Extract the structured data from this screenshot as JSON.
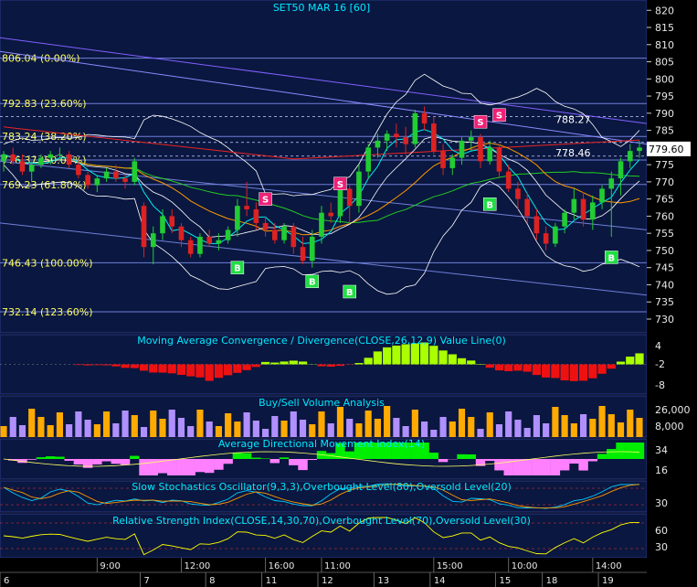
{
  "colors": {
    "background": "#0a1740",
    "panel_border": "#2a3a88",
    "price_axis_bg": "#000000",
    "axis_text": "#e8e8e8",
    "title_text": "#00e8ff",
    "fib_text": "#ffff60",
    "bull_candle": "#22cc33",
    "bear_candle": "#dd2222",
    "buy_marker": "#22dd44",
    "sell_marker": "#ee2277",
    "macd_pos": "#aaff00",
    "macd_neg": "#ee1111",
    "vol_up": "#ffaa00",
    "vol_down": "#b090ff",
    "adx_pos": "#00ee00",
    "adx_neg": "#ff80ff"
  },
  "price_panel": {
    "title": "SET50 MAR 16   [60]",
    "last_price_label": "779.60",
    "y_ticks": [
      "820",
      "815",
      "810",
      "805",
      "800",
      "795",
      "790",
      "785",
      "780",
      "775",
      "770",
      "765",
      "760",
      "755",
      "750",
      "745",
      "740",
      "735",
      "730"
    ],
    "fib_levels": [
      {
        "label": "806.04 (0.00%)",
        "value": 806.04
      },
      {
        "label": "792.83 (23.60%)",
        "value": 792.83
      },
      {
        "label": "783.24 (38.20%)",
        "value": 783.24
      },
      {
        "label": "776.37 (50.00%)",
        "value": 776.37
      },
      {
        "label": "769.23 (61.80%)",
        "value": 769.23
      },
      {
        "label": "746.43 (100.00%)",
        "value": 746.43
      },
      {
        "label": "732.14 (123.60%)",
        "value": 732.14
      }
    ],
    "annotations": [
      {
        "label": "788.27",
        "value": 788.27
      },
      {
        "label": "778.46",
        "value": 778.46
      }
    ],
    "signals": [
      {
        "type": "B",
        "bar": 25,
        "price": 745.0
      },
      {
        "type": "S",
        "bar": 28,
        "price": 765.0
      },
      {
        "type": "B",
        "bar": 33,
        "price": 741.0
      },
      {
        "type": "S",
        "bar": 36,
        "price": 769.5
      },
      {
        "type": "B",
        "bar": 37,
        "price": 738.0
      },
      {
        "type": "S",
        "bar": 51,
        "price": 787.5
      },
      {
        "type": "S",
        "bar": 53,
        "price": 789.5
      },
      {
        "type": "B",
        "bar": 52,
        "price": 763.5
      },
      {
        "type": "B",
        "bar": 65,
        "price": 748.0
      }
    ]
  },
  "indicators": {
    "macd": {
      "title": "Moving Average Convergence / Divergence(CLOSE,26,12,9) Value Line(0)",
      "ticks": [
        "4",
        "-2",
        "-8"
      ]
    },
    "volume": {
      "title": "Buy/Sell Volume Analysis",
      "ticks": [
        "26,000",
        "8,000"
      ]
    },
    "adx": {
      "title": "Average Directional Movement Index(14)",
      "ticks": [
        "34",
        "16"
      ]
    },
    "stochastic": {
      "title": "Slow Stochastics Oscillator(9,3,3),Overbought Level(80),Oversold Level(20)",
      "ticks": [
        "30"
      ]
    },
    "rsi": {
      "title": "Relative Strength Index(CLOSE,14,30,70),Overbought Level(70),Oversold Level(30)",
      "ticks": [
        "60",
        "30"
      ]
    }
  },
  "time_axis": {
    "hours": [
      {
        "label": "9:00",
        "bar": 10
      },
      {
        "label": "12:00",
        "bar": 19
      },
      {
        "label": "16:00",
        "bar": 28
      },
      {
        "label": "11:00",
        "bar": 34
      },
      {
        "label": "15:00",
        "bar": 46
      },
      {
        "label": "10:00",
        "bar": 54
      },
      {
        "label": "14:00",
        "bar": 63
      }
    ],
    "days": [
      {
        "label": "6",
        "bar": 0
      },
      {
        "label": "7",
        "bar": 15
      },
      {
        "label": "8",
        "bar": 22
      },
      {
        "label": "11",
        "bar": 28
      },
      {
        "label": "12",
        "bar": 34
      },
      {
        "label": "13",
        "bar": 40
      },
      {
        "label": "14",
        "bar": 46
      },
      {
        "label": "15",
        "bar": 53
      },
      {
        "label": "18",
        "bar": 58
      },
      {
        "label": "19",
        "bar": 64
      }
    ]
  },
  "chart_data": {
    "type": "candlestick",
    "title": "SET50 MAR 16   [60]",
    "ylim": [
      726,
      823
    ],
    "ohlc": [
      [
        776,
        779,
        773,
        778
      ],
      [
        778,
        780,
        775,
        776
      ],
      [
        776,
        778,
        772,
        773
      ],
      [
        773,
        776,
        770,
        775
      ],
      [
        775,
        778,
        774,
        777
      ],
      [
        777,
        779,
        775,
        778
      ],
      [
        778,
        780,
        776,
        778
      ],
      [
        778,
        779,
        774,
        775
      ],
      [
        775,
        776,
        771,
        772
      ],
      [
        772,
        773,
        768,
        769
      ],
      [
        769,
        772,
        767,
        771
      ],
      [
        771,
        774,
        770,
        773
      ],
      [
        773,
        775,
        770,
        771
      ],
      [
        771,
        772,
        768,
        770
      ],
      [
        770,
        777,
        769,
        776
      ],
      [
        763,
        764,
        748,
        751
      ],
      [
        751,
        757,
        746,
        755
      ],
      [
        755,
        762,
        753,
        760
      ],
      [
        760,
        762,
        755,
        757
      ],
      [
        757,
        758,
        751,
        753
      ],
      [
        753,
        754,
        748,
        749
      ],
      [
        749,
        755,
        748,
        754
      ],
      [
        754,
        756,
        751,
        752
      ],
      [
        752,
        755,
        750,
        753
      ],
      [
        753,
        757,
        752,
        756
      ],
      [
        756,
        765,
        754,
        763
      ],
      [
        763,
        770,
        760,
        762
      ],
      [
        762,
        764,
        756,
        758
      ],
      [
        758,
        760,
        754,
        756
      ],
      [
        756,
        758,
        752,
        753
      ],
      [
        753,
        758,
        752,
        757
      ],
      [
        757,
        758,
        749,
        751
      ],
      [
        751,
        754,
        746,
        747
      ],
      [
        747,
        756,
        745,
        754
      ],
      [
        754,
        763,
        752,
        761
      ],
      [
        761,
        764,
        758,
        760
      ],
      [
        760,
        770,
        758,
        768
      ],
      [
        768,
        769,
        758,
        763
      ],
      [
        763,
        775,
        761,
        773
      ],
      [
        773,
        781,
        771,
        780
      ],
      [
        780,
        784,
        777,
        782
      ],
      [
        782,
        785,
        779,
        784
      ],
      [
        784,
        787,
        780,
        783
      ],
      [
        783,
        786,
        778,
        781
      ],
      [
        781,
        791,
        780,
        790
      ],
      [
        790,
        792,
        785,
        787
      ],
      [
        787,
        789,
        778,
        779
      ],
      [
        779,
        781,
        772,
        774
      ],
      [
        774,
        778,
        772,
        777
      ],
      [
        777,
        783,
        775,
        782
      ],
      [
        782,
        785,
        779,
        783
      ],
      [
        783,
        784,
        774,
        776
      ],
      [
        776,
        782,
        775,
        780
      ],
      [
        780,
        781,
        771,
        773
      ],
      [
        773,
        775,
        767,
        768
      ],
      [
        768,
        770,
        762,
        765
      ],
      [
        765,
        767,
        758,
        760
      ],
      [
        760,
        762,
        753,
        755
      ],
      [
        755,
        757,
        750,
        752
      ],
      [
        752,
        758,
        751,
        757
      ],
      [
        757,
        762,
        755,
        761
      ],
      [
        761,
        768,
        759,
        765
      ],
      [
        765,
        767,
        757,
        759
      ],
      [
        759,
        766,
        756,
        764
      ],
      [
        764,
        769,
        762,
        768
      ],
      [
        768,
        773,
        754,
        771
      ],
      [
        771,
        777,
        766,
        776
      ],
      [
        776,
        781,
        774,
        779
      ],
      [
        779,
        782,
        777,
        780
      ]
    ]
  }
}
